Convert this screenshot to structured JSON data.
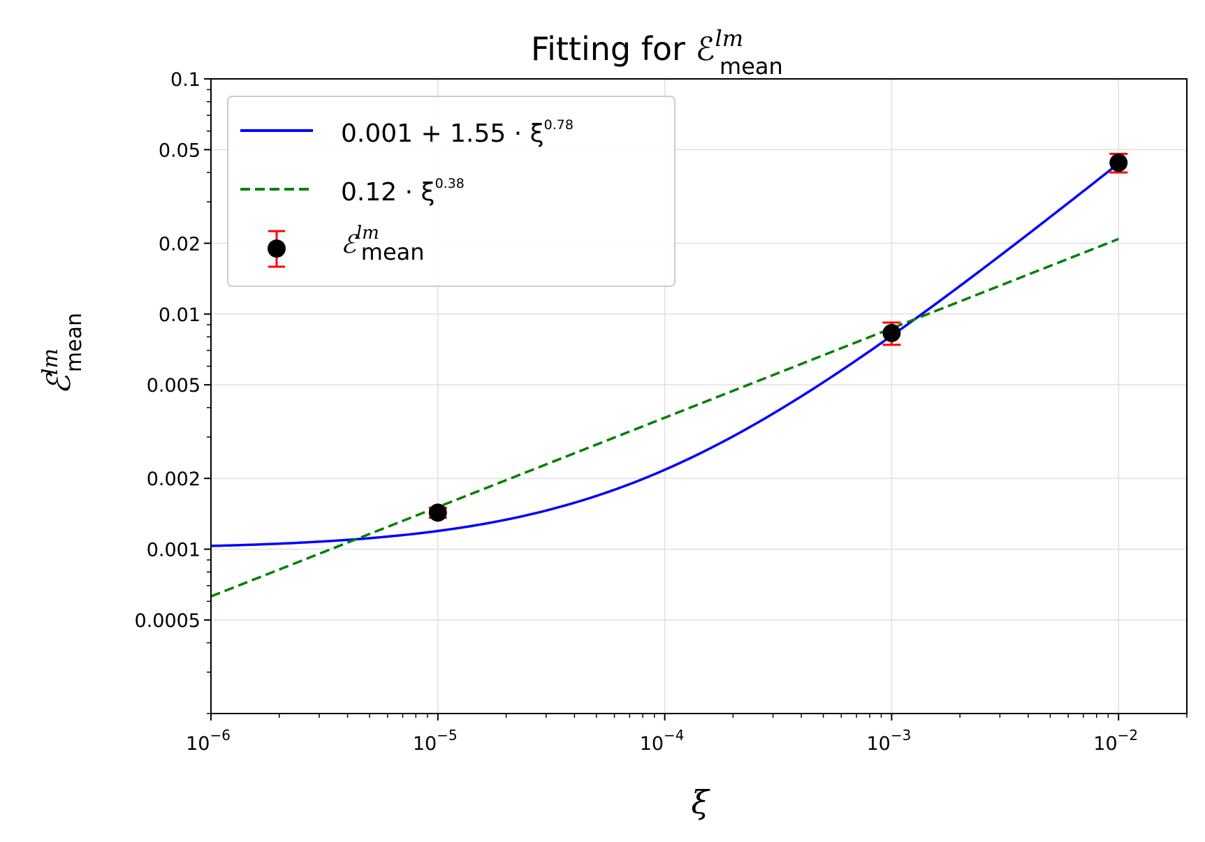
{
  "chart_data": {
    "type": "line",
    "title": "Fitting for ℰ",
    "title_sup": "lm",
    "title_sub": "mean",
    "xlabel": "ξ",
    "ylabel": "ℰ",
    "ylabel_sup": "lm",
    "ylabel_sub": "mean",
    "x_scale": "log",
    "y_scale": "log",
    "xlim": [
      1e-06,
      0.02
    ],
    "ylim": [
      0.0002,
      0.1
    ],
    "grid": true,
    "legend_position": "upper-left",
    "x_ticks": [
      {
        "value": 1e-06,
        "base": "10",
        "exp": "−6"
      },
      {
        "value": 1e-05,
        "base": "10",
        "exp": "−5"
      },
      {
        "value": 0.0001,
        "base": "10",
        "exp": "−4"
      },
      {
        "value": 0.001,
        "base": "10",
        "exp": "−3"
      },
      {
        "value": 0.01,
        "base": "10",
        "exp": "−2"
      }
    ],
    "y_ticks": [
      {
        "value": 0.1,
        "label": "0.1"
      },
      {
        "value": 0.05,
        "label": "0.05"
      },
      {
        "value": 0.02,
        "label": "0.02"
      },
      {
        "value": 0.01,
        "label": "0.01"
      },
      {
        "value": 0.005,
        "label": "0.005"
      },
      {
        "value": 0.002,
        "label": "0.002"
      },
      {
        "value": 0.001,
        "label": "0.001"
      },
      {
        "value": 0.0005,
        "label": "0.0005"
      }
    ],
    "series": [
      {
        "name": "0.001 + 1.55 · ξ^0.78",
        "label_main": "0.001 + 1.55 · ξ",
        "label_sup": "0.78",
        "style": "solid",
        "color": "#0000ff",
        "model": {
          "a": 0.001,
          "b": 1.55,
          "p": 0.78
        },
        "x_range": [
          1e-06,
          0.01
        ]
      },
      {
        "name": "0.12 · ξ^0.38",
        "label_main": "0.12 · ξ",
        "label_sup": "0.38",
        "style": "dashed",
        "color": "#008000",
        "model": {
          "a": 0,
          "b": 0.12,
          "p": 0.38
        },
        "x_range": [
          1e-06,
          0.01
        ]
      },
      {
        "name": "ℰ mean lm",
        "label_main": "ℰ",
        "label_sup": "lm",
        "label_sub": "mean",
        "style": "errorbar",
        "color": "#000000",
        "error_color": "#ff0000",
        "points": [
          {
            "x": 1e-05,
            "y": 0.00143,
            "err_low": 7e-05,
            "err_high": 7e-05
          },
          {
            "x": 0.001,
            "y": 0.0083,
            "err_low": 0.0009,
            "err_high": 0.0009
          },
          {
            "x": 0.01,
            "y": 0.044,
            "err_low": 0.004,
            "err_high": 0.004
          }
        ]
      }
    ]
  }
}
